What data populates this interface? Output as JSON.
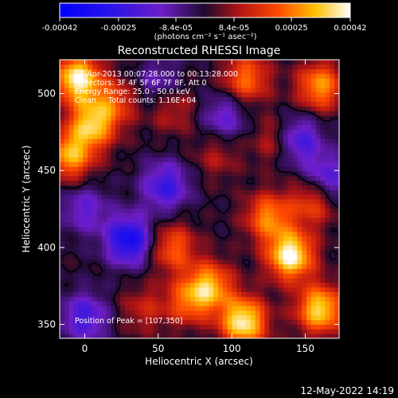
{
  "chart_data": {
    "type": "heatmap",
    "title": "Reconstructed RHESSI Image",
    "xlabel": "Heliocentric X (arcsec)",
    "ylabel": "Heliocentric Y (arcsec)",
    "xlim": [
      -17,
      173
    ],
    "ylim": [
      341,
      522
    ],
    "x_ticks": [
      0,
      50,
      100,
      150
    ],
    "y_ticks": [
      350,
      400,
      450,
      500
    ],
    "colorbar": {
      "min": -0.00042,
      "max": 0.00042,
      "tick_values": [
        -0.00042,
        -0.00025,
        -8.4e-05,
        8.4e-05,
        0.00025,
        0.00042
      ],
      "tick_labels": [
        "-0.00042",
        "-0.00025",
        "-8.4e-05",
        "8.4e-05",
        "0.00025",
        "0.00042"
      ],
      "units": "(photons cm⁻² s⁻¹ asec⁻²)"
    },
    "annotations": [
      "10-Apr-2013 00:07:28.000 to 00:13:28.000",
      "Detectors: 3F 4F 5F 6F 7F 8F, Att 0",
      "Energy Range: 25.0 - 50.0 keV",
      "Clean     Total counts: 1.16E+04"
    ],
    "peak_label": "Position of Peak = [107,350]",
    "peak_position": [
      107,
      350
    ],
    "footer_date": "12-May-2022 14:19",
    "hotspots": [
      {
        "x": 140,
        "y": 395,
        "value": 0.00042
      },
      {
        "x": 108,
        "y": 352,
        "value": 0.0004
      },
      {
        "x": 160,
        "y": 360,
        "value": 0.00036
      },
      {
        "x": 85,
        "y": 375,
        "value": 0.0003
      },
      {
        "x": 125,
        "y": 420,
        "value": 0.00026
      },
      {
        "x": 155,
        "y": 430,
        "value": 0.0002
      },
      {
        "x": 60,
        "y": 400,
        "value": 0.00022
      },
      {
        "x": 70,
        "y": 365,
        "value": 0.0002
      },
      {
        "x": 40,
        "y": 360,
        "value": 0.00012
      },
      {
        "x": -5,
        "y": 510,
        "value": 0.0004
      },
      {
        "x": 5,
        "y": 480,
        "value": 0.00032
      },
      {
        "x": -10,
        "y": 460,
        "value": 0.0003
      },
      {
        "x": 20,
        "y": 495,
        "value": 0.00018
      },
      {
        "x": 110,
        "y": 510,
        "value": 0.00024
      },
      {
        "x": 160,
        "y": 505,
        "value": 0.00028
      },
      {
        "x": 130,
        "y": 470,
        "value": 0.00014
      },
      {
        "x": 60,
        "y": 490,
        "value": 0.00012
      },
      {
        "x": 90,
        "y": 460,
        "value": 0.0001
      },
      {
        "x": 30,
        "y": 405,
        "value": -0.00034
      },
      {
        "x": 55,
        "y": 440,
        "value": -0.00024
      },
      {
        "x": 145,
        "y": 470,
        "value": -0.00024
      },
      {
        "x": 0,
        "y": 355,
        "value": -0.00022
      },
      {
        "x": 0,
        "y": 425,
        "value": -0.00016
      },
      {
        "x": 95,
        "y": 485,
        "value": -0.00016
      },
      {
        "x": 165,
        "y": 445,
        "value": -0.0002
      },
      {
        "x": 50,
        "y": 508,
        "value": -0.00012
      }
    ]
  }
}
